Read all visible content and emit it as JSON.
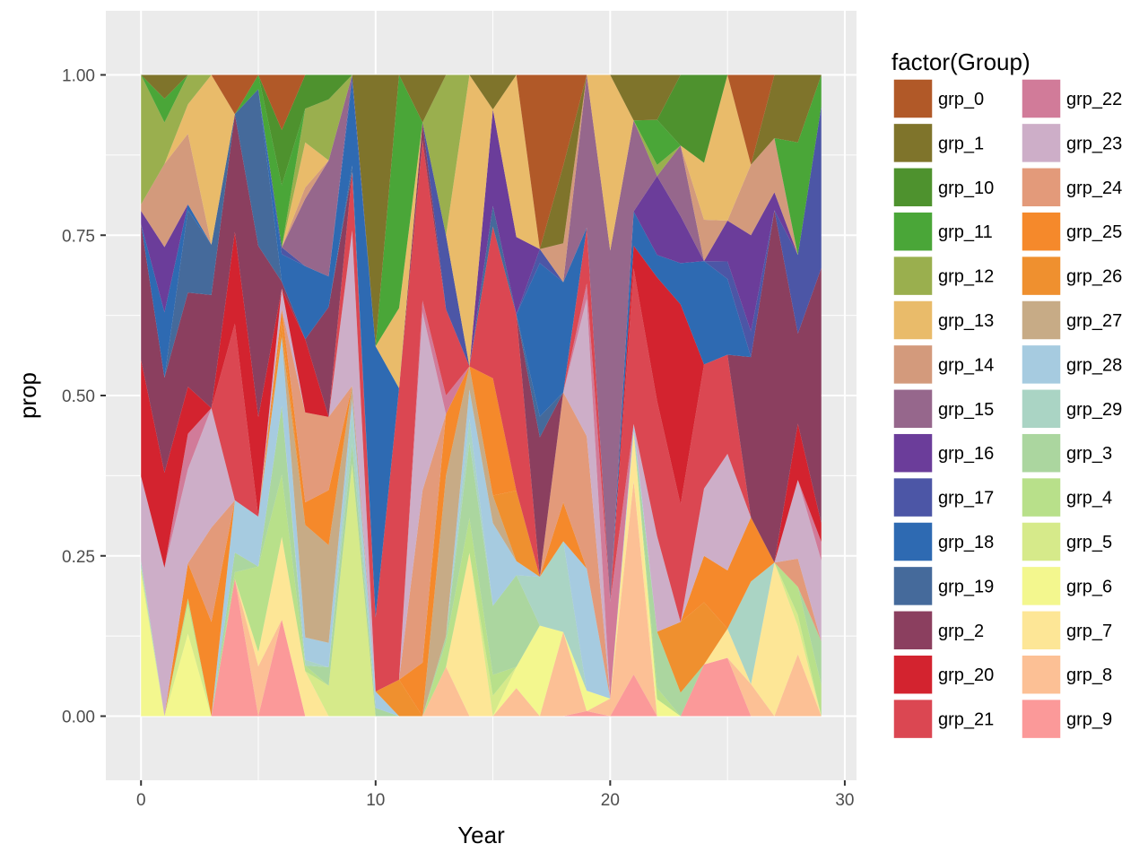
{
  "chart_data": {
    "type": "area",
    "stacked": true,
    "normalized": true,
    "xlabel": "Year",
    "ylabel": "prop",
    "xlim": [
      -1.5,
      30.5
    ],
    "ylim": [
      -0.1,
      1.1
    ],
    "x_ticks": [
      0,
      10,
      20,
      30
    ],
    "y_ticks": [
      0.0,
      0.25,
      0.5,
      0.75,
      1.0
    ],
    "x_tick_labels": [
      "0",
      "10",
      "20",
      "30"
    ],
    "y_tick_labels": [
      "0.00",
      "0.25",
      "0.50",
      "0.75",
      "1.00"
    ],
    "grid": true,
    "legend": {
      "title": "factor(Group)",
      "placement": "right",
      "columns": 2
    },
    "x": [
      0,
      1,
      2,
      3,
      4,
      5,
      6,
      7,
      8,
      9,
      10,
      11,
      12,
      13,
      14,
      15,
      16,
      17,
      18,
      19,
      20,
      21,
      22,
      23,
      24,
      25,
      26,
      27,
      28,
      29
    ],
    "series": [
      {
        "name": "grp_0",
        "color": "#B15928",
        "values": [
          0,
          0,
          0,
          0,
          0.06,
          0,
          0.08,
          0,
          0,
          0,
          0,
          0,
          0,
          0,
          0,
          0,
          0,
          0.25,
          0.14,
          0,
          0,
          0,
          0,
          0,
          0,
          0,
          0.14,
          0,
          0,
          0
        ]
      },
      {
        "name": "grp_1",
        "color": "#7F742B",
        "values": [
          0,
          0.04,
          0,
          0,
          0,
          0,
          0,
          0,
          0,
          0,
          0.33,
          0,
          0.08,
          0,
          0,
          0.05,
          0,
          0,
          0.12,
          0,
          0,
          0.12,
          0.08,
          0,
          0,
          0,
          0,
          0.07,
          0.12,
          0
        ]
      },
      {
        "name": "grp_10",
        "color": "#4E922E",
        "values": [
          0,
          0,
          0,
          0,
          0,
          0,
          0.08,
          0.06,
          0.04,
          0,
          0,
          0,
          0,
          0,
          0,
          0,
          0,
          0,
          0,
          0,
          0,
          0,
          0,
          0.12,
          0.17,
          0,
          0,
          0,
          0,
          0
        ]
      },
      {
        "name": "grp_11",
        "color": "#4AA638",
        "values": [
          0,
          0.04,
          0,
          0,
          0,
          0.02,
          0.09,
          0,
          0,
          0,
          0,
          0.32,
          0,
          0,
          0,
          0,
          0,
          0,
          0,
          0,
          0,
          0,
          0.08,
          0,
          0,
          0,
          0,
          0,
          0.2,
          0.05
        ]
      },
      {
        "name": "grp_12",
        "color": "#9AAF4E",
        "values": [
          0.2,
          0.07,
          0.05,
          0,
          0,
          0,
          0,
          0.06,
          0.1,
          0,
          0,
          0,
          0,
          0.26,
          0,
          0,
          0,
          0,
          0,
          0,
          0,
          0,
          0.02,
          0,
          0,
          0,
          0,
          0,
          0,
          0
        ]
      },
      {
        "name": "grp_13",
        "color": "#E9BB6A",
        "values": [
          0,
          0,
          0.05,
          0.27,
          0,
          0,
          0,
          0.08,
          0,
          0,
          0,
          0.11,
          0,
          0,
          0.5,
          0,
          0.23,
          0,
          0,
          0,
          0.2,
          0,
          0,
          0,
          0.11,
          0.25,
          0,
          0,
          0,
          0
        ]
      },
      {
        "name": "grp_14",
        "color": "#D39A7C",
        "values": [
          0.01,
          0.14,
          0.12,
          0,
          0,
          0,
          0,
          0.02,
          0,
          0,
          0,
          0,
          0,
          0,
          0,
          0,
          0,
          0,
          0.06,
          0,
          0,
          0,
          0,
          0,
          0.08,
          0,
          0.11,
          0.06,
          0,
          0
        ]
      },
      {
        "name": "grp_15",
        "color": "#96678C",
        "values": [
          0,
          0,
          0,
          0,
          0,
          0,
          0,
          0.12,
          0.19,
          0,
          0,
          0,
          0,
          0,
          0,
          0,
          0,
          0,
          0,
          0.3,
          0.4,
          0.24,
          0,
          0.12,
          0,
          0,
          0,
          0,
          0,
          0
        ]
      },
      {
        "name": "grp_16",
        "color": "#6B3D9A",
        "values": [
          0.02,
          0.11,
          0,
          0,
          0,
          0,
          0,
          0,
          0,
          0,
          0,
          0,
          0,
          0,
          0,
          0.14,
          0.11,
          0,
          0,
          0,
          0,
          0,
          0.14,
          0.08,
          0,
          0.07,
          0.15,
          0.02,
          0,
          0
        ]
      },
      {
        "name": "grp_17",
        "color": "#4C56A6",
        "values": [
          0,
          0,
          0,
          0,
          0,
          0,
          0.01,
          0,
          0,
          0.01,
          0,
          0,
          0,
          0.12,
          0,
          0,
          0,
          0.02,
          0,
          0,
          0,
          0,
          0,
          0,
          0,
          0.03,
          0.04,
          0,
          0.14,
          0.26
        ]
      },
      {
        "name": "grp_18",
        "color": "#2E6AB2",
        "values": [
          0,
          0.11,
          0.01,
          0,
          0,
          0,
          0.04,
          0.13,
          0.05,
          0.13,
          0.33,
          0,
          0,
          0,
          0,
          0,
          0,
          0.22,
          0.17,
          0,
          0,
          0.09,
          0.04,
          0.07,
          0.2,
          0.13,
          0,
          0,
          0,
          0
        ]
      },
      {
        "name": "grp_19",
        "color": "#456A9B",
        "values": [
          0,
          0,
          0.14,
          0.08,
          0,
          0.22,
          0,
          0,
          0,
          0.01,
          0,
          0,
          0,
          0,
          0,
          0.03,
          0,
          0.03,
          0,
          0,
          0,
          0,
          0,
          0,
          0,
          0,
          0,
          0,
          0,
          0
        ]
      },
      {
        "name": "grp_2",
        "color": "#8B3F5F",
        "values": [
          0.21,
          0.16,
          0.16,
          0.18,
          0.18,
          0.24,
          0.01,
          0,
          0.18,
          0,
          0,
          0,
          0.03,
          0,
          0,
          0,
          0,
          0.2,
          0,
          0,
          0,
          0,
          0,
          0,
          0,
          0,
          0.25,
          0.39,
          0.16,
          0.41
        ]
      },
      {
        "name": "grp_20",
        "color": "#D3232F",
        "values": [
          0.18,
          0.16,
          0.08,
          0,
          0.14,
          0.14,
          0,
          0.13,
          0,
          0,
          0,
          0,
          0,
          0,
          0,
          0,
          0,
          0,
          0,
          0,
          0,
          0.06,
          0.22,
          0.34,
          0,
          0,
          0,
          0,
          0.1,
          0.03
        ]
      },
      {
        "name": "grp_21",
        "color": "#DB4752",
        "values": [
          0,
          0,
          0,
          0,
          0.27,
          0,
          0,
          0,
          0,
          0.09,
          0.09,
          0.4,
          0.27,
          0.14,
          0,
          0.22,
          0.25,
          0,
          0,
          0.11,
          0,
          0.41,
          0.24,
          0.2,
          0.24,
          0.17,
          0,
          0,
          0,
          0
        ]
      },
      {
        "name": "grp_22",
        "color": "#D17B99",
        "values": [
          0,
          0,
          0.06,
          0,
          0,
          0,
          0,
          0,
          0,
          0,
          0,
          0,
          0.02,
          0.03,
          0,
          0,
          0,
          0,
          0,
          0.03,
          0.11,
          0,
          0,
          0,
          0,
          0,
          0,
          0,
          0,
          0.03
        ]
      },
      {
        "name": "grp_23",
        "color": "#CDAEC8",
        "values": [
          0.13,
          0.25,
          0.16,
          0.19,
          0,
          0,
          0.03,
          0,
          0,
          0.24,
          0,
          0,
          0.3,
          0,
          0,
          0,
          0,
          0,
          0,
          0.27,
          0,
          0,
          0.17,
          0,
          0.13,
          0.2,
          0,
          0,
          0.14,
          0.13
        ]
      },
      {
        "name": "grp_24",
        "color": "#E39A7A",
        "values": [
          0,
          0,
          0,
          0.15,
          0,
          0,
          0,
          0.16,
          0.12,
          0,
          0,
          0,
          0.29,
          0,
          0,
          0,
          0,
          0,
          0.17,
          0.26,
          0,
          0,
          0,
          0,
          0,
          0,
          0,
          0,
          0.05,
          0
        ]
      },
      {
        "name": "grp_25",
        "color": "#F5892B",
        "values": [
          0,
          0,
          0.06,
          0.15,
          0,
          0,
          0.02,
          0.04,
          0.09,
          0,
          0,
          0,
          0.09,
          0.1,
          0,
          0.17,
          0,
          0,
          0.06,
          0,
          0,
          0,
          0,
          0,
          0.09,
          0.1,
          0.1,
          0,
          0,
          0
        ]
      },
      {
        "name": "grp_26",
        "color": "#EF902F",
        "values": [
          0,
          0,
          0,
          0,
          0,
          0,
          0.02,
          0,
          0,
          0,
          0,
          0.05,
          0,
          0,
          0,
          0,
          0.1,
          0,
          0,
          0,
          0,
          0,
          0,
          0.12,
          0.12,
          0,
          0,
          0,
          0,
          0
        ]
      },
      {
        "name": "grp_27",
        "color": "#C7AB86",
        "values": [
          0,
          0,
          0,
          0,
          0,
          0,
          0,
          0.2,
          0.16,
          0.02,
          0,
          0,
          0,
          0.26,
          0.04,
          0.04,
          0,
          0,
          0,
          0,
          0,
          0,
          0,
          0,
          0,
          0,
          0,
          0,
          0,
          0
        ]
      },
      {
        "name": "grp_28",
        "color": "#A6CBE0",
        "values": [
          0,
          0,
          0,
          0,
          0.08,
          0.07,
          0.1,
          0.04,
          0.04,
          0.02,
          0.02,
          0,
          0,
          0,
          0.05,
          0.12,
          0.02,
          0,
          0,
          0.24,
          0,
          0.02,
          0,
          0,
          0,
          0,
          0,
          0,
          0,
          0
        ]
      },
      {
        "name": "grp_29",
        "color": "#AAD4C4",
        "values": [
          0.01,
          0,
          0,
          0,
          0,
          0,
          0,
          0.01,
          0,
          0.05,
          0,
          0,
          0,
          0,
          0.04,
          0,
          0,
          0.07,
          0.14,
          0,
          0,
          0,
          0,
          0,
          0,
          0,
          0.16,
          0,
          0,
          0
        ]
      },
      {
        "name": "grp_3",
        "color": "#ABD69F",
        "values": [
          0,
          0,
          0,
          0,
          0.03,
          0,
          0.1,
          0,
          0.03,
          0.03,
          0.01,
          0,
          0,
          0.01,
          0.13,
          0.1,
          0.13,
          0,
          0,
          0,
          0,
          0,
          0.1,
          0.04,
          0,
          0,
          0,
          0,
          0,
          0.07
        ]
      },
      {
        "name": "grp_4",
        "color": "#B8E08A",
        "values": [
          0,
          0,
          0.01,
          0,
          0.01,
          0.12,
          0.09,
          0.01,
          0,
          0,
          0,
          0,
          0,
          0.04,
          0.06,
          0.03,
          0,
          0,
          0,
          0,
          0,
          0,
          0.02,
          0,
          0,
          0,
          0,
          0,
          0.05,
          0.05
        ]
      },
      {
        "name": "grp_5",
        "color": "#D6EA8A",
        "values": [
          0.01,
          0,
          0.05,
          0,
          0,
          0,
          0,
          0,
          0.05,
          0.39,
          0,
          0,
          0,
          0,
          0,
          0.03,
          0,
          0,
          0,
          0,
          0,
          0,
          0,
          0,
          0,
          0,
          0,
          0,
          0.02,
          0
        ]
      },
      {
        "name": "grp_6",
        "color": "#F3F78E",
        "values": [
          0.22,
          0,
          0.14,
          0,
          0,
          0,
          0,
          0,
          0,
          0,
          0,
          0,
          0,
          0,
          0,
          0,
          0.03,
          0.13,
          0,
          0.04,
          0,
          0,
          0.03,
          0,
          0,
          0,
          0,
          0,
          0,
          0
        ]
      },
      {
        "name": "grp_7",
        "color": "#FDE696",
        "values": [
          0,
          0,
          0,
          0,
          0,
          0.02,
          0.12,
          0.08,
          0,
          0,
          0,
          0,
          0,
          0,
          0.28,
          0,
          0,
          0,
          0,
          0,
          0,
          0.13,
          0,
          0,
          0,
          0.05,
          0,
          0.17,
          0.05,
          0
        ]
      },
      {
        "name": "grp_8",
        "color": "#FCC095",
        "values": [
          0,
          0,
          0,
          0,
          0,
          0.07,
          0,
          0,
          0,
          0,
          0,
          0,
          0,
          0.08,
          0,
          0,
          0.04,
          0,
          0.13,
          0,
          0.02,
          0.51,
          0,
          0,
          0,
          0,
          0.05,
          0,
          0.11,
          0
        ]
      },
      {
        "name": "grp_9",
        "color": "#FB9999",
        "values": [
          0,
          0,
          0,
          0,
          0.21,
          0,
          0.14,
          0,
          0,
          0,
          0,
          0,
          0,
          0,
          0,
          0,
          0,
          0,
          0,
          0.01,
          0,
          0.11,
          0,
          0,
          0.1,
          0.1,
          0,
          0,
          0,
          0
        ]
      }
    ]
  }
}
